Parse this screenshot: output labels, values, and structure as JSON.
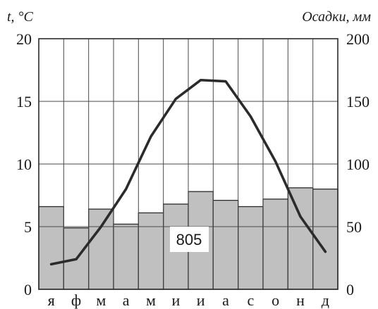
{
  "chart_data": {
    "type": "climatogram",
    "left_axis_label": "t, °C",
    "right_axis_label": "Осадки, мм",
    "categories": [
      "я",
      "ф",
      "м",
      "а",
      "м",
      "и",
      "и",
      "а",
      "с",
      "о",
      "н",
      "д"
    ],
    "temperature": {
      "axis": "left",
      "ylim": [
        0,
        20
      ],
      "ticks": [
        0,
        5,
        10,
        15,
        20
      ],
      "values": [
        2.0,
        2.4,
        5.0,
        8.0,
        12.2,
        15.2,
        16.7,
        16.6,
        13.8,
        10.2,
        5.8,
        3.0
      ],
      "color": "#2b2b2b"
    },
    "precipitation": {
      "axis": "right",
      "ylim": [
        0,
        200
      ],
      "ticks": [
        0,
        50,
        100,
        150,
        200
      ],
      "values": [
        66,
        49,
        64,
        52,
        61,
        68,
        78,
        71,
        66,
        72,
        81,
        80
      ],
      "color": "#c0c0c0"
    },
    "annual_precipitation_label": "805",
    "grid": true
  }
}
